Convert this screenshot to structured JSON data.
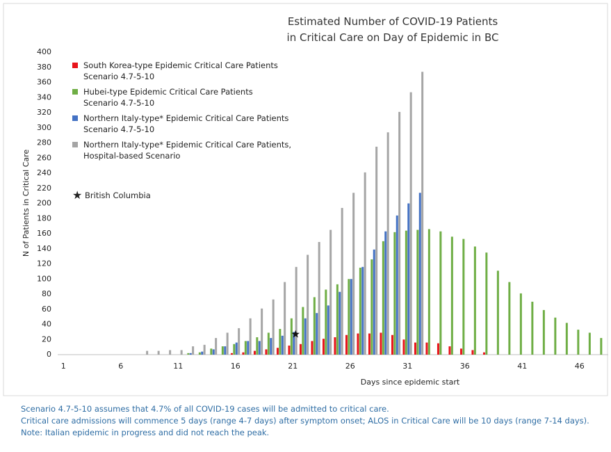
{
  "chart_data": {
    "type": "bar",
    "title": "Estimated Number of COVID-19 Patients\nin Critical Care on Day of Epidemic in BC",
    "x_label": "Days since epidemic start",
    "y_label": "N of Patients in Critical Care",
    "categories": [
      "1",
      null,
      null,
      null,
      null,
      "6",
      null,
      null,
      null,
      null,
      "11",
      null,
      null,
      null,
      null,
      "16",
      null,
      null,
      null,
      null,
      "21",
      null,
      null,
      null,
      null,
      "26",
      null,
      null,
      null,
      null,
      "31",
      null,
      null,
      null,
      null,
      "36",
      null,
      null,
      null,
      null,
      "41",
      null,
      null,
      null,
      null,
      "46",
      null,
      null
    ],
    "series": [
      {
        "name": "South Korea-type Epidemic Critical Care Patients\nScenario 4.7-5-10",
        "color": "#e8141b",
        "values": [
          null,
          null,
          null,
          null,
          null,
          null,
          null,
          null,
          null,
          null,
          null,
          null,
          null,
          null,
          null,
          2,
          3,
          5,
          7,
          9,
          12,
          14,
          18,
          21,
          23,
          26,
          28,
          28,
          29,
          26,
          20,
          16,
          16,
          15,
          11,
          8,
          6,
          3,
          null,
          null,
          null,
          null,
          null,
          null,
          null,
          null,
          null,
          null
        ]
      },
      {
        "name": "Hubei-type Epidemic Critical Care Patients\nScenario 4.7-5-10",
        "color": "#6fae45",
        "values": [
          null,
          null,
          null,
          null,
          null,
          null,
          null,
          null,
          null,
          null,
          null,
          2,
          3,
          8,
          11,
          14,
          18,
          23,
          29,
          34,
          48,
          63,
          76,
          86,
          93,
          100,
          115,
          126,
          150,
          162,
          164,
          165,
          166,
          163,
          156,
          153,
          143,
          135,
          111,
          96,
          81,
          70,
          59,
          49,
          42,
          33,
          29,
          22
        ]
      },
      {
        "name": "Northern Italy-type* Epidemic Critical Care Patients\nScenario 4.7-5-10",
        "color": "#4472c4",
        "values": [
          null,
          null,
          null,
          null,
          null,
          null,
          null,
          null,
          null,
          null,
          null,
          2,
          4,
          7,
          11,
          16,
          18,
          18,
          22,
          25,
          30,
          48,
          55,
          65,
          83,
          100,
          116,
          139,
          163,
          184,
          200,
          214,
          null,
          null,
          null,
          null,
          null,
          null,
          null,
          null,
          null,
          null,
          null,
          null,
          null,
          null,
          null,
          null
        ]
      },
      {
        "name": "Northern Italy-type* Epidemic Critical Care Patients,\nHospital-based Scenario",
        "color": "#a5a5a5",
        "values": [
          null,
          null,
          null,
          null,
          null,
          null,
          null,
          5,
          5,
          6,
          6,
          11,
          13,
          22,
          29,
          35,
          48,
          61,
          73,
          96,
          116,
          132,
          149,
          165,
          194,
          214,
          241,
          275,
          294,
          321,
          347,
          374,
          null,
          null,
          null,
          null,
          null,
          null,
          null,
          null,
          null,
          null,
          null,
          null,
          null,
          null,
          null,
          null
        ]
      }
    ],
    "marker": {
      "name": "British Columbia",
      "x": 21,
      "value": 27,
      "color": "#111"
    },
    "ylim": [
      0,
      400
    ],
    "yticks": [
      0,
      20,
      40,
      60,
      80,
      100,
      120,
      140,
      160,
      180,
      200,
      220,
      240,
      260,
      280,
      300,
      320,
      340,
      360,
      380,
      400
    ],
    "grid": false
  },
  "notes": [
    "Scenario 4.7-5-10 assumes that 4.7% of all COVID-19 cases will be admitted to critical care.",
    "Critical care admissions will commence 5 days (range 4-7 days) after symptom onset; ALOS in Critical Care will be 10 days (range 7-14 days).",
    "Note: Italian epidemic in progress and did not reach the peak."
  ]
}
